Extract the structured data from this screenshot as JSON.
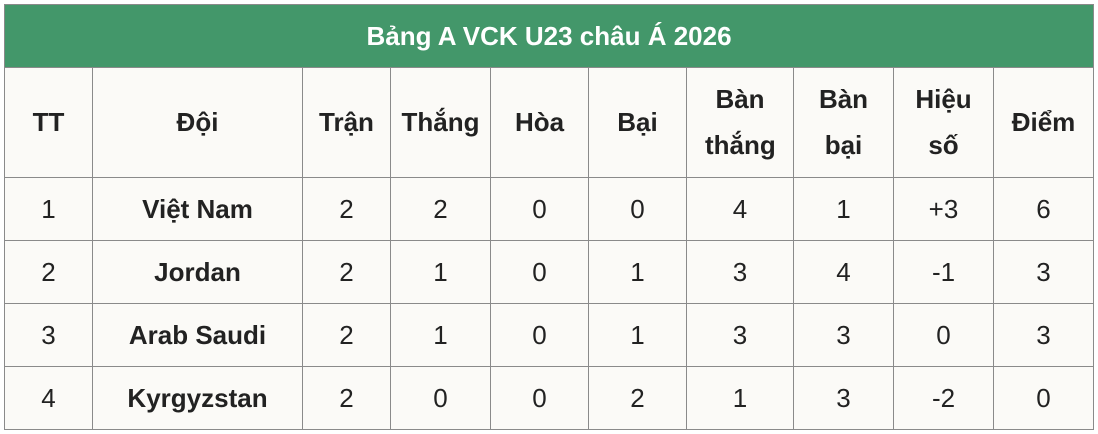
{
  "title": "Bảng A VCK U23 châu Á 2026",
  "colors": {
    "header_bg": "#43976a",
    "header_text": "#ffffff",
    "table_bg": "#fbfaf7",
    "border": "#8a8a8a"
  },
  "columns": [
    "TT",
    "Đội",
    "Trận",
    "Thắng",
    "Hòa",
    "Bại",
    "Bàn thắng",
    "Bàn bại",
    "Hiệu số",
    "Điểm"
  ],
  "rows": [
    [
      "1",
      "Việt Nam",
      "2",
      "2",
      "0",
      "0",
      "4",
      "1",
      "+3",
      "6"
    ],
    [
      "2",
      "Jordan",
      "2",
      "1",
      "0",
      "1",
      "3",
      "4",
      "-1",
      "3"
    ],
    [
      "3",
      "Arab Saudi",
      "2",
      "1",
      "0",
      "1",
      "3",
      "3",
      "0",
      "3"
    ],
    [
      "4",
      "Kyrgyzstan",
      "2",
      "0",
      "0",
      "2",
      "1",
      "3",
      "-2",
      "0"
    ]
  ]
}
